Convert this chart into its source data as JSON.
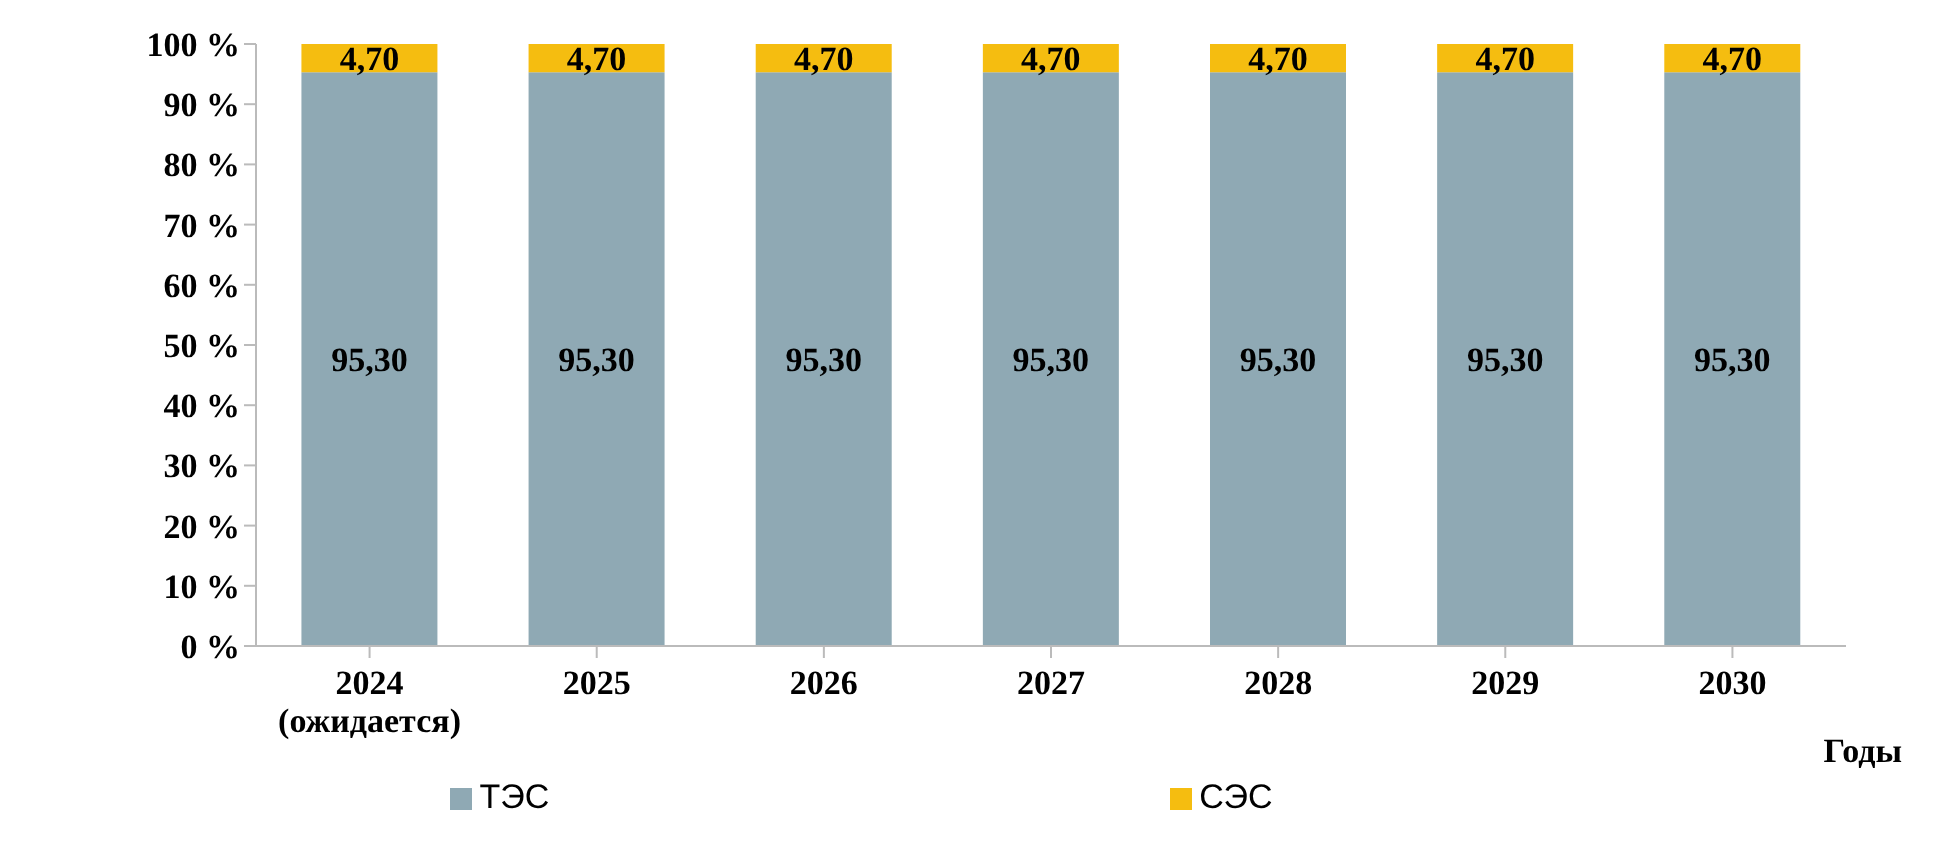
{
  "chart_data": {
    "type": "bar",
    "stacked": true,
    "xlabel": "Годы",
    "categories": [
      "2024 (ожидается)",
      "2025",
      "2026",
      "2027",
      "2028",
      "2029",
      "2030"
    ],
    "series": [
      {
        "name": "ТЭС",
        "color": "#8fa9b4",
        "values": [
          95.3,
          95.3,
          95.3,
          95.3,
          95.3,
          95.3,
          95.3
        ],
        "value_labels": [
          "95,30",
          "95,30",
          "95,30",
          "95,30",
          "95,30",
          "95,30",
          "95,30"
        ]
      },
      {
        "name": "СЭС",
        "color": "#f5bd10",
        "values": [
          4.7,
          4.7,
          4.7,
          4.7,
          4.7,
          4.7,
          4.7
        ],
        "value_labels": [
          "4,70",
          "4,70",
          "4,70",
          "4,70",
          "4,70",
          "4,70",
          "4,70"
        ]
      }
    ],
    "ylim": [
      0,
      100
    ],
    "yticks": [
      {
        "value": 0,
        "label": "0 %"
      },
      {
        "value": 10,
        "label": "10 %"
      },
      {
        "value": 20,
        "label": "20 %"
      },
      {
        "value": 30,
        "label": "30 %"
      },
      {
        "value": 40,
        "label": "40 %"
      },
      {
        "value": 50,
        "label": "50 %"
      },
      {
        "value": 60,
        "label": "60 %"
      },
      {
        "value": 70,
        "label": "70 %"
      },
      {
        "value": 80,
        "label": "80 %"
      },
      {
        "value": 90,
        "label": "90 %"
      },
      {
        "value": 100,
        "label": "100 %"
      }
    ],
    "legend": "bottom",
    "grid": false
  }
}
